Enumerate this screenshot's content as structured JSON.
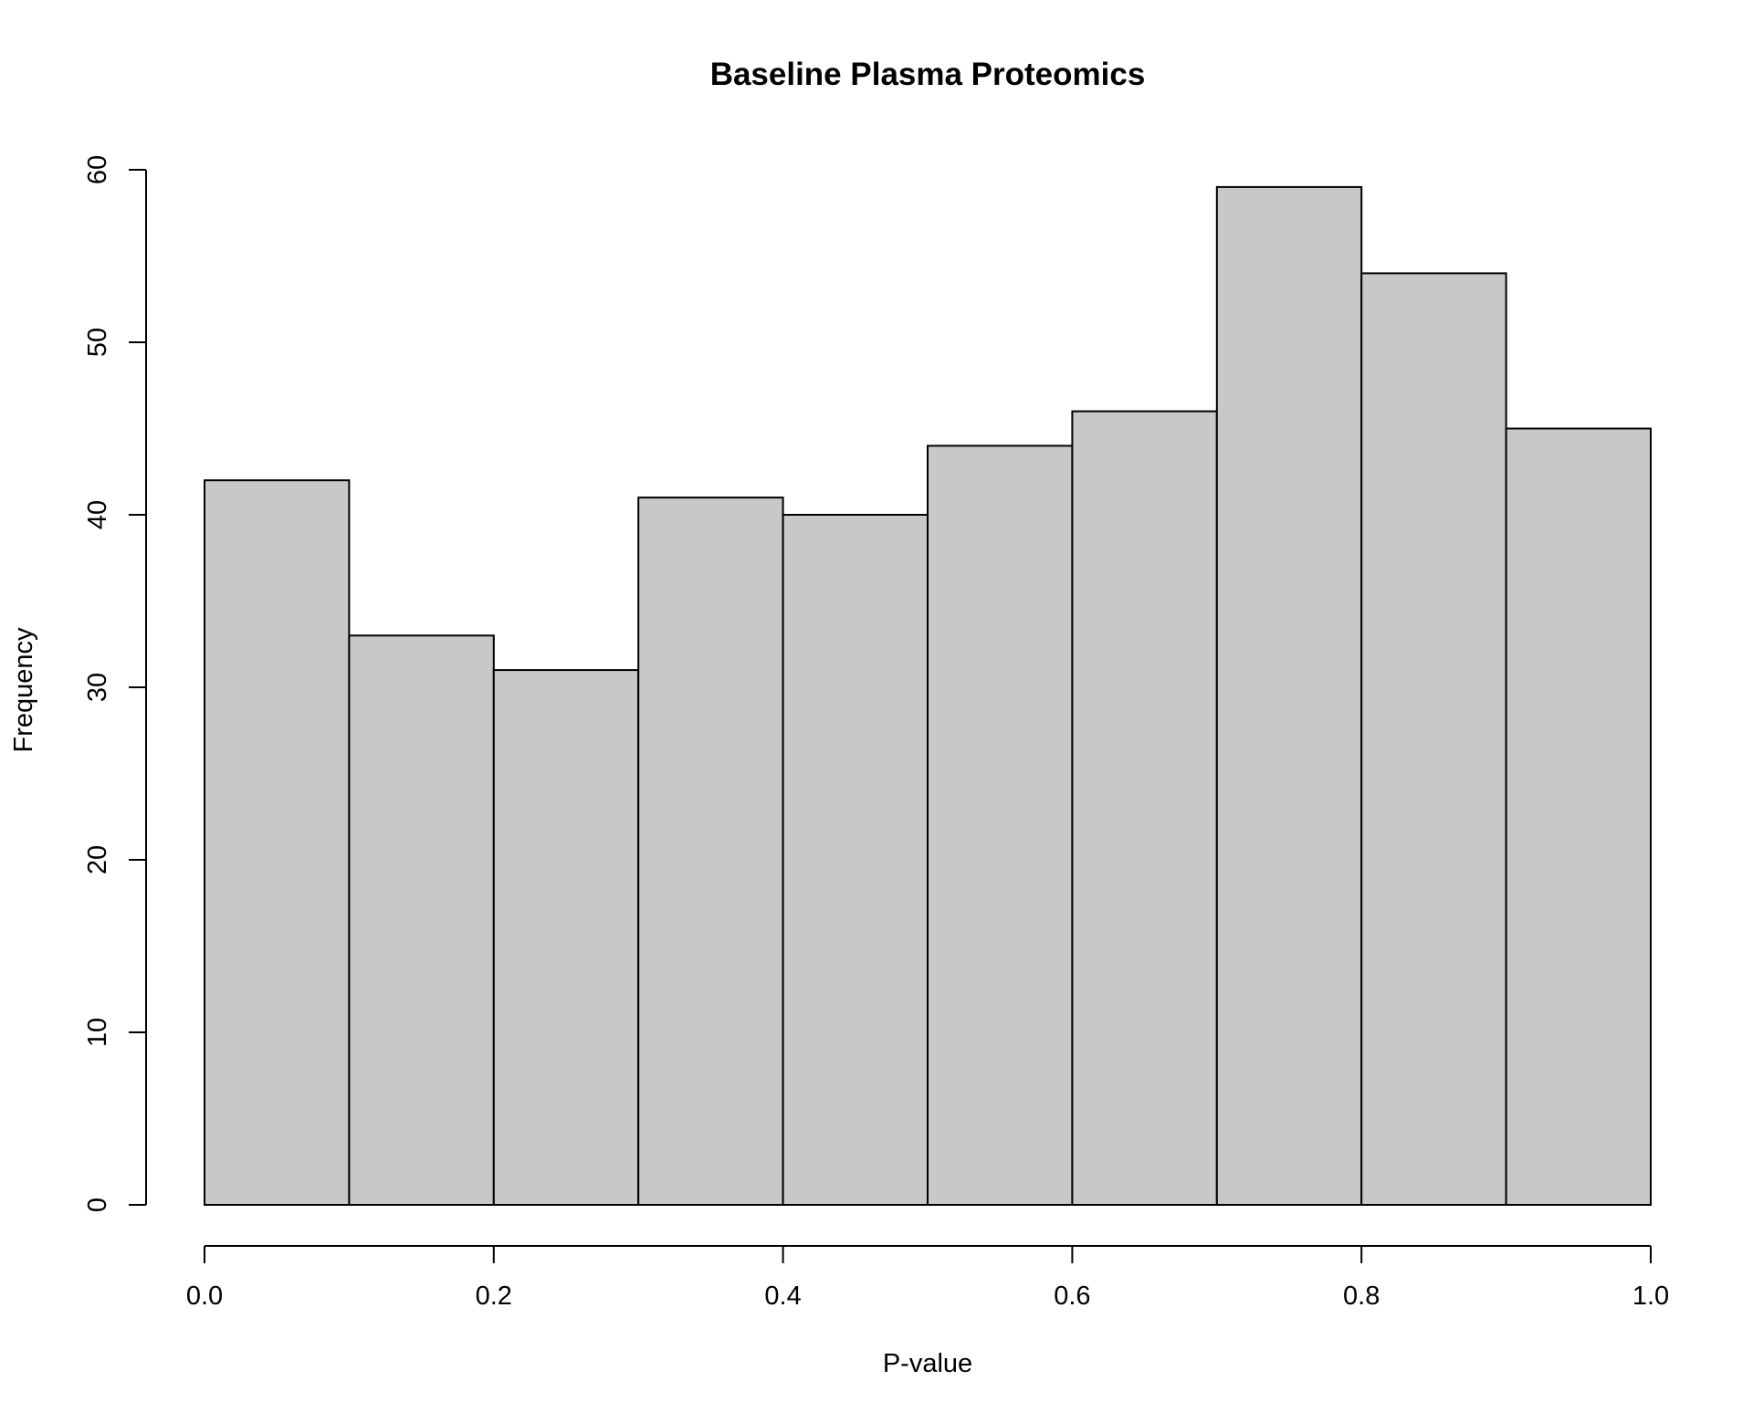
{
  "chart_data": {
    "type": "bar",
    "title": "Baseline Plasma Proteomics",
    "xlabel": "P-value",
    "ylabel": "Frequency",
    "bin_edges": [
      0.0,
      0.1,
      0.2,
      0.3,
      0.4,
      0.5,
      0.6,
      0.7,
      0.8,
      0.9,
      1.0
    ],
    "values": [
      42,
      33,
      31,
      41,
      40,
      44,
      46,
      59,
      54,
      45
    ],
    "xlim": [
      0.0,
      1.0
    ],
    "ylim": [
      0,
      60
    ],
    "x_ticks": [
      "0.0",
      "0.2",
      "0.4",
      "0.6",
      "0.8",
      "1.0"
    ],
    "y_ticks": [
      "0",
      "10",
      "20",
      "30",
      "40",
      "50",
      "60"
    ],
    "grid": false,
    "bar_fill": "#c8c8c8",
    "bar_stroke": "#000000"
  }
}
